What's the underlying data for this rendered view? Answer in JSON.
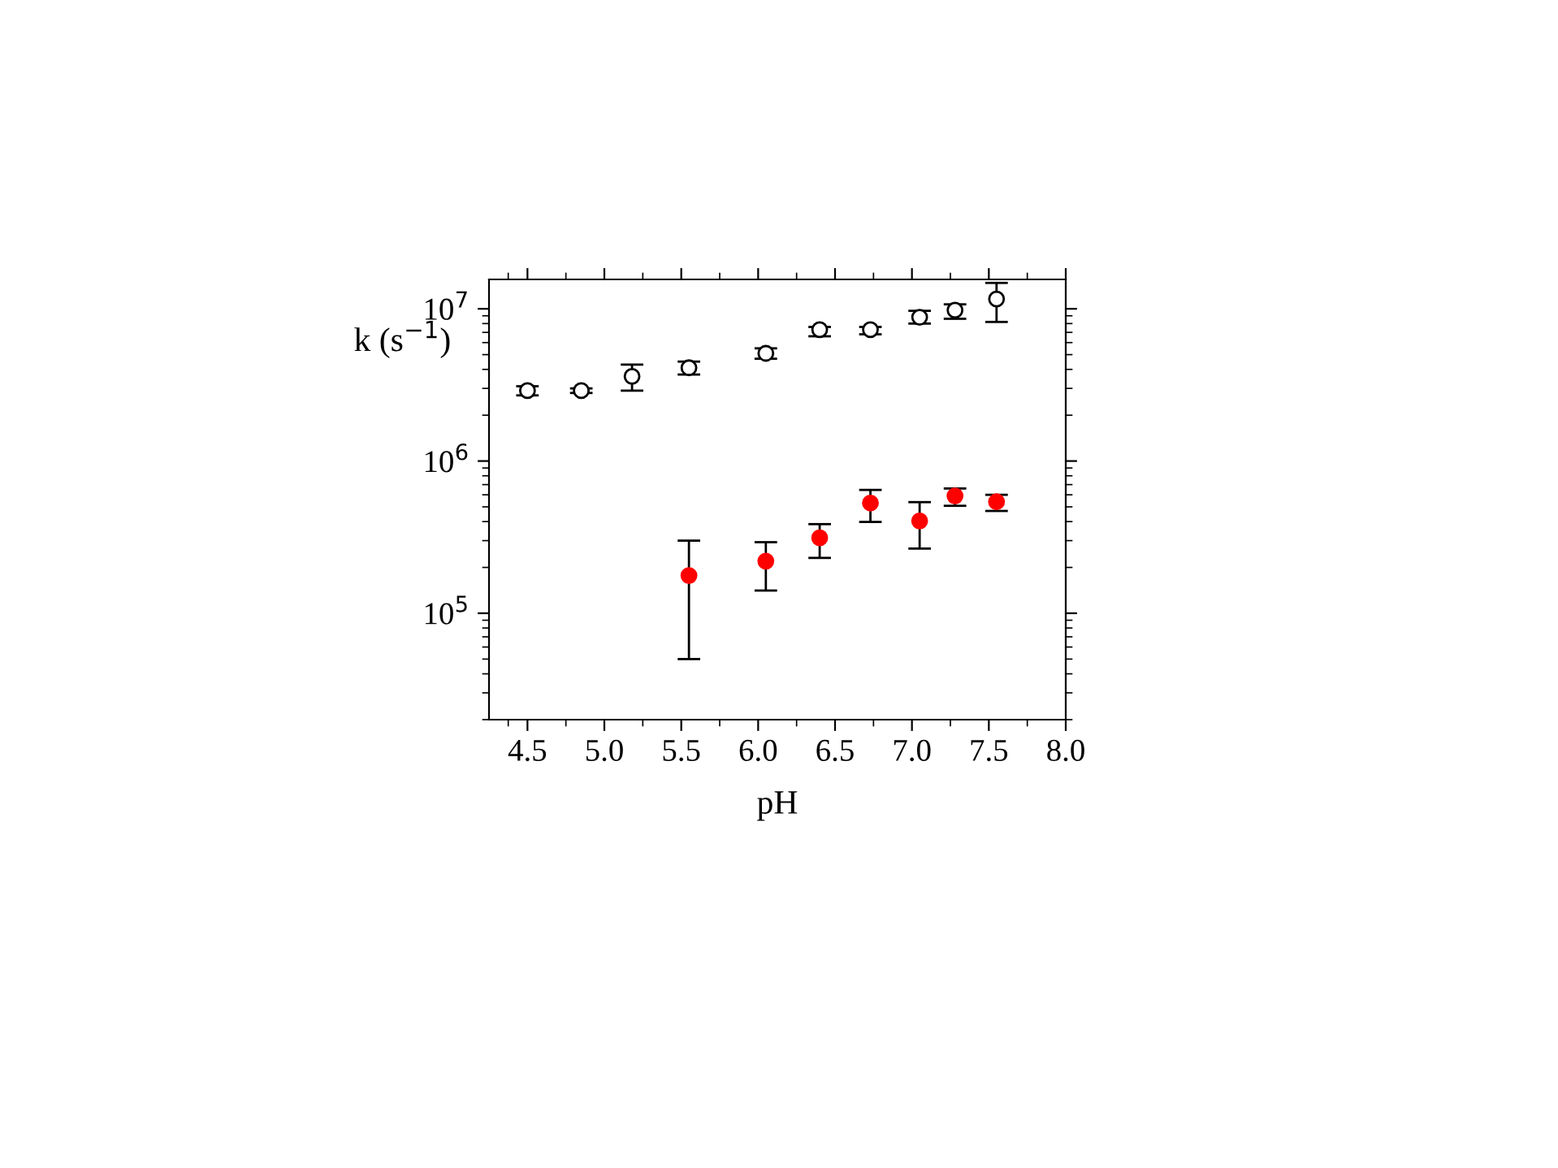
{
  "chart_data": {
    "type": "scatter",
    "xlabel": "pH",
    "ylabel": "k (s$^{−1}$)",
    "log": "y",
    "marker": "circle",
    "grid": false,
    "legend": false,
    "xlim": [
      4.25,
      8.0
    ],
    "xticks": [
      4.5,
      {
        "value": 5,
        "label": "5.0"
      },
      5.5,
      {
        "value": 6,
        "label": "6.0"
      },
      6.5,
      {
        "value": 7,
        "label": "7.0"
      },
      7.5,
      {
        "value": 8,
        "label": "8.0"
      }
    ],
    "ylim": [
      20000,
      15600000
    ],
    "yticks": [
      {
        "value": 100000,
        "label": "10$^{5}$"
      },
      {
        "value": 1000000,
        "label": "10$^{6}$"
      },
      {
        "value": 10000000,
        "label": "10$^{7}$"
      }
    ],
    "series": [
      {
        "color": "#000000",
        "x": [
          4.5,
          4.85,
          5.18,
          5.55,
          6.05,
          6.4,
          6.73,
          7.05,
          7.28,
          7.55
        ],
        "values": [
          2900000,
          2900000,
          3600000,
          4100000,
          5100000,
          7300000,
          7300000,
          8800000,
          9800000,
          11600000
        ],
        "errors": [
          [
            2700000,
            3100000
          ],
          [
            2800000,
            3000000
          ],
          [
            2900000,
            4300000
          ],
          [
            3700000,
            4500000
          ],
          [
            4700000,
            5500000
          ],
          [
            6600000,
            7600000
          ],
          [
            6800000,
            7600000
          ],
          [
            8000000,
            9700000
          ],
          [
            8600000,
            10700000
          ],
          [
            8200000,
            14800000
          ]
        ]
      },
      {
        "color": "#ff0000",
        "x": [
          5.55,
          6.05,
          6.4,
          6.73,
          7.05,
          7.28,
          7.55
        ],
        "values": [
          177000,
          220000,
          313000,
          530000,
          404000,
          590000,
          540000
        ],
        "errors": [
          [
            50000,
            300000
          ],
          [
            141000,
            293000
          ],
          [
            231000,
            385000
          ],
          [
            398000,
            646000
          ],
          [
            266000,
            537000
          ],
          [
            508000,
            660000
          ],
          [
            470000,
            600000
          ]
        ]
      }
    ]
  }
}
